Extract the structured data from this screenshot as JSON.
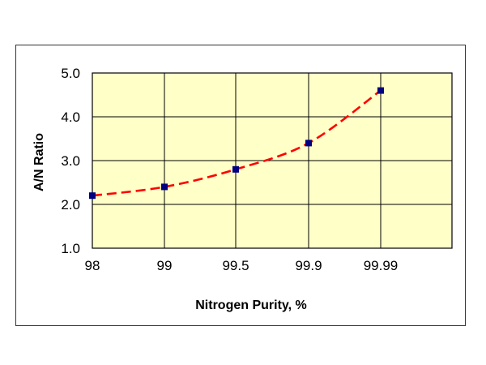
{
  "chart_data": {
    "type": "line",
    "title": "",
    "xlabel": "Nitrogen Purity,  %",
    "ylabel": "A/N  Ratio",
    "categories": [
      "98",
      "99",
      "99.5",
      "99.9",
      "99.99"
    ],
    "series": [
      {
        "values": [
          2.2,
          2.4,
          2.8,
          3.4,
          4.6
        ]
      }
    ],
    "yticks": [
      "1.0",
      "2.0",
      "3.0",
      "4.0",
      "5.0"
    ],
    "ylim": [
      1.0,
      5.0
    ],
    "grid": true,
    "legend": "none",
    "colors": {
      "plot_background": "#ffffc8",
      "curve": "#ff0000",
      "marker": "#000080",
      "grid": "#000000",
      "frame": "#000000"
    }
  }
}
